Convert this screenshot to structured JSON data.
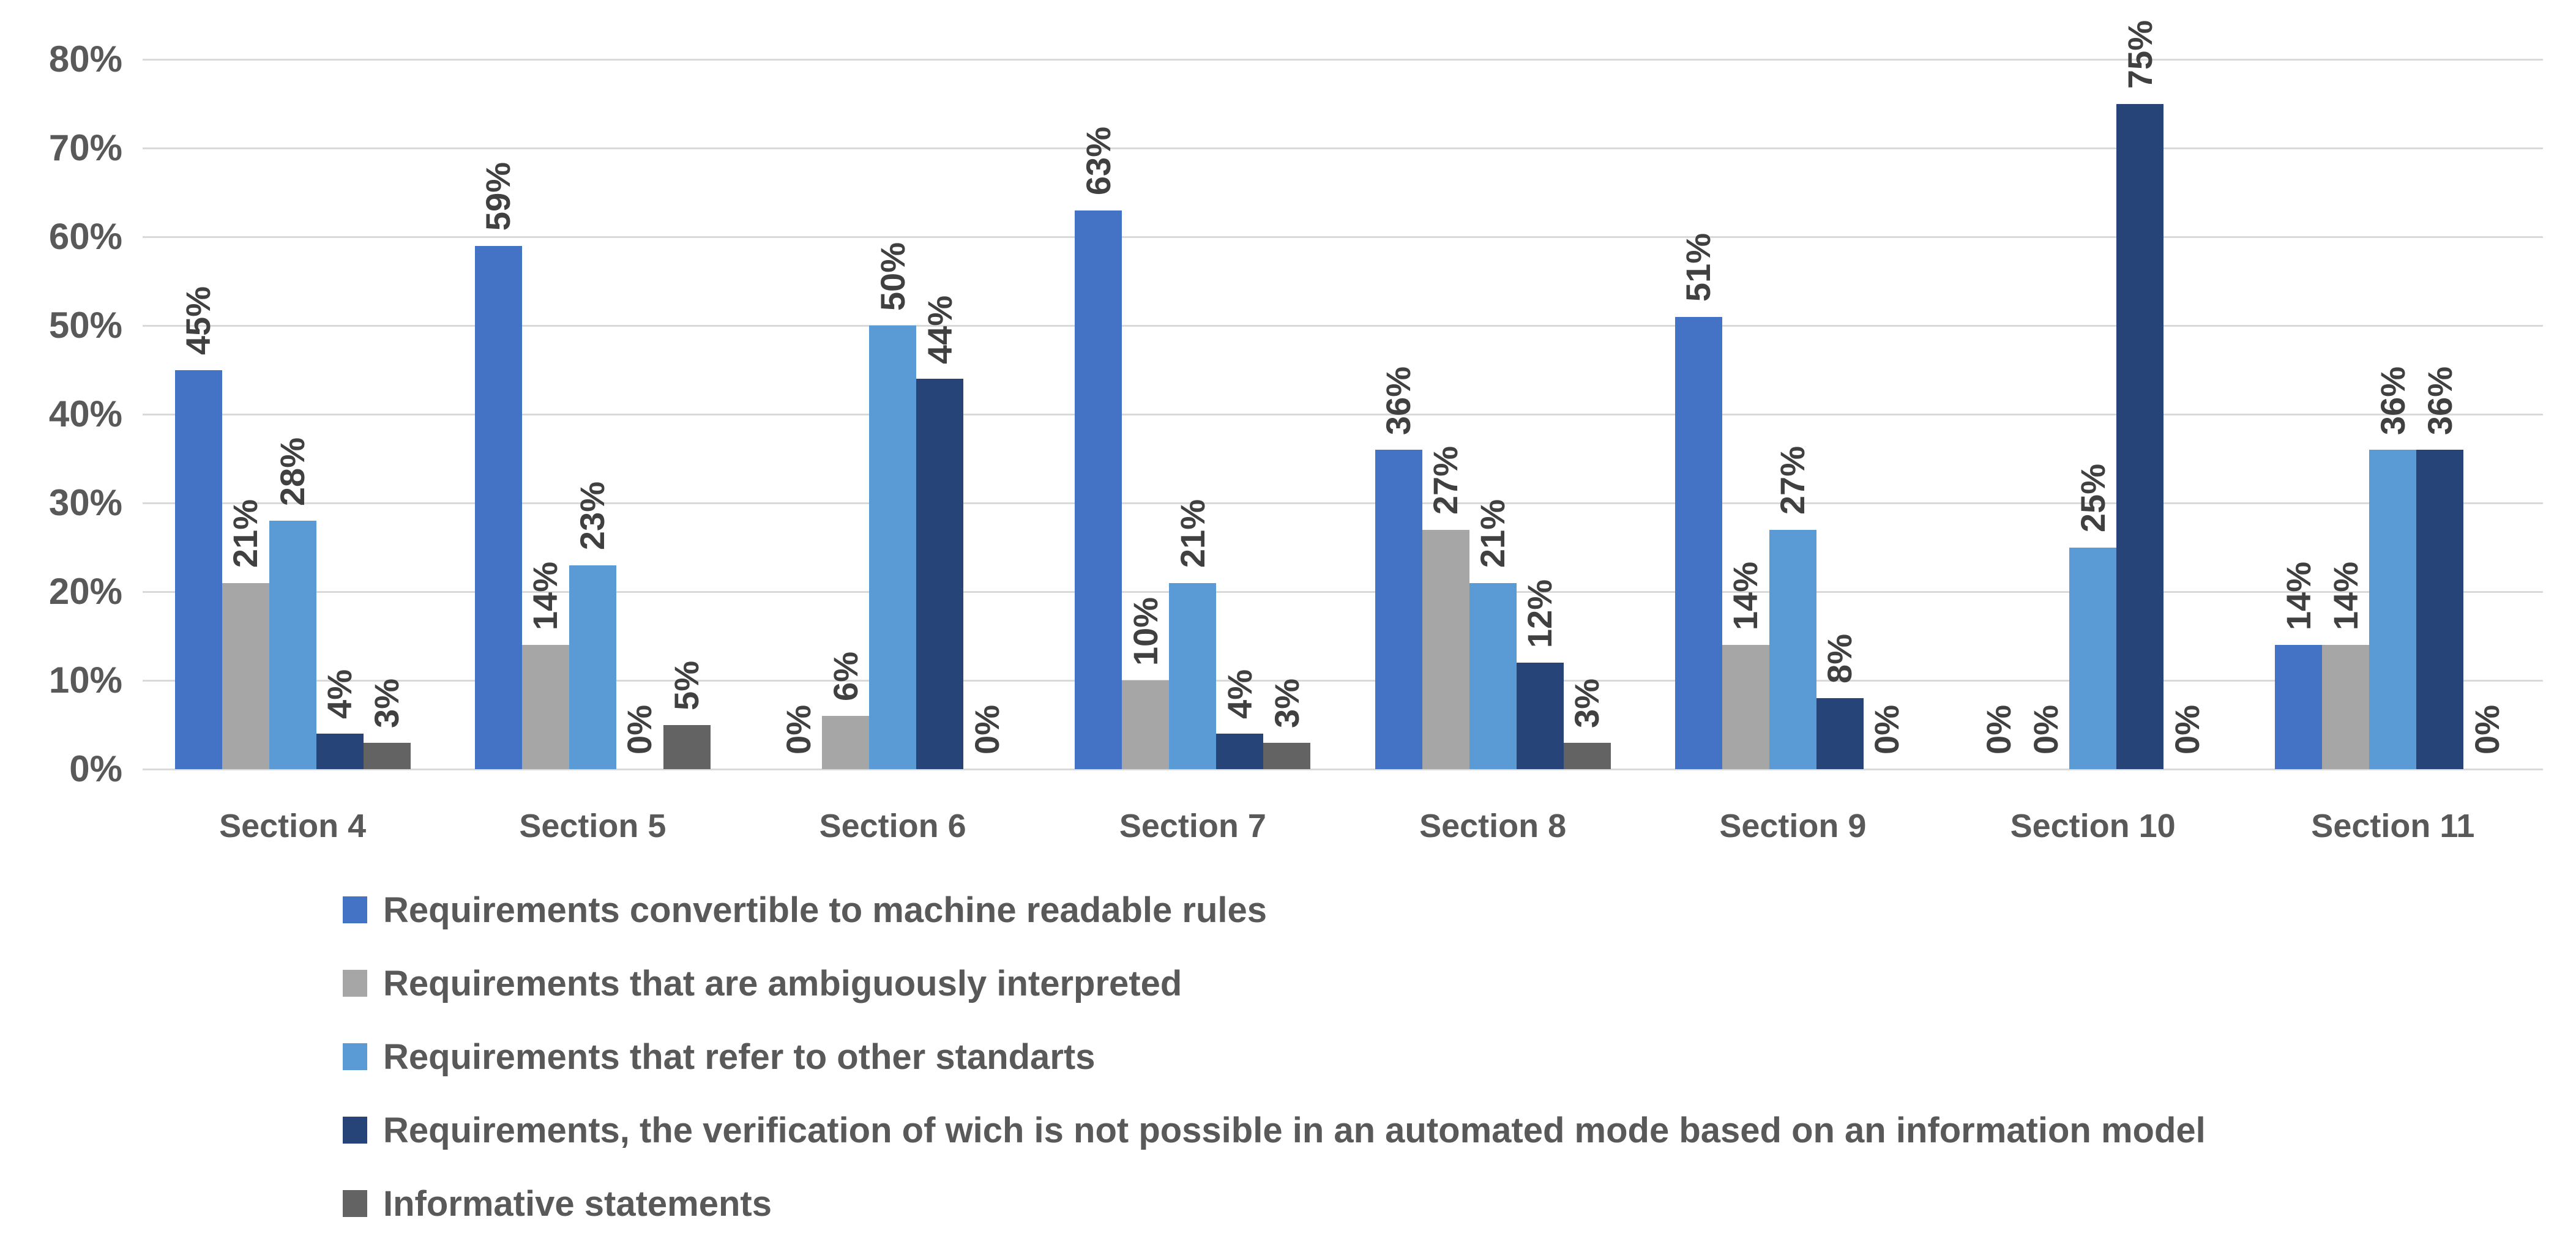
{
  "chart_data": {
    "type": "bar",
    "title": "",
    "categories": [
      "Section 4",
      "Section 5",
      "Section 6",
      "Section 7",
      "Section 8",
      "Section 9",
      "Section 10",
      "Section 11"
    ],
    "series": [
      {
        "name": "Requirements convertible to machine readable rules",
        "color": "#4472C4",
        "values": [
          45,
          59,
          0,
          63,
          36,
          51,
          0,
          14
        ]
      },
      {
        "name": "Requirements that are ambiguously interpreted",
        "color": "#A6A6A6",
        "values": [
          21,
          14,
          6,
          10,
          27,
          14,
          0,
          14
        ]
      },
      {
        "name": "Requirements that refer to other standarts",
        "color": "#5B9BD5",
        "values": [
          28,
          23,
          50,
          21,
          21,
          27,
          25,
          36
        ]
      },
      {
        "name": "Requirements, the verification of wich is not possible in an automated mode based on an information model",
        "color": "#264478",
        "values": [
          4,
          0,
          44,
          4,
          12,
          8,
          75,
          36
        ]
      },
      {
        "name": "Informative statements",
        "color": "#636363",
        "values": [
          3,
          5,
          0,
          3,
          3,
          0,
          0,
          0
        ]
      }
    ],
    "y_axis": {
      "min": 0,
      "max": 80,
      "step": 10,
      "tick_labels": [
        "0%",
        "10%",
        "20%",
        "30%",
        "40%",
        "50%",
        "60%",
        "70%",
        "80%"
      ]
    },
    "value_label_format": "{v}%",
    "value_label_rotation": -90,
    "grid": true,
    "gridline_color": "#D9D9D9",
    "axis_text_color": "#595959",
    "value_label_color": "#404040",
    "legend_position": "bottom-left",
    "xlabel": "",
    "ylabel": ""
  }
}
